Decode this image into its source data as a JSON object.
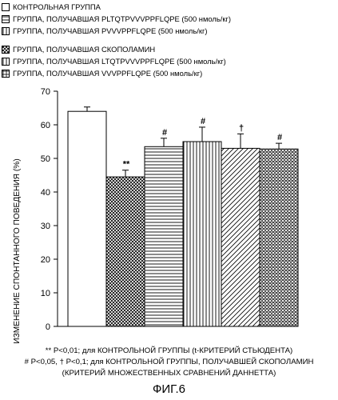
{
  "legend": [
    {
      "label": "КОНТРОЛЬНАЯ ГРУППА",
      "pattern": "blank"
    },
    {
      "label": "ГРУППА, ПОЛУЧАВШАЯ PLTQTPVVVPPFLQPE (500 нмоль/кг)",
      "pattern": "hlines"
    },
    {
      "label": "ГРУППА, ПОЛУЧАВШАЯ PVVVPPFLQPE (500 нмоль/кг)",
      "pattern": "vlines"
    },
    {
      "label": "ГРУППА, ПОЛУЧАВШАЯ СКОПОЛАМИН",
      "pattern": "crosshatch"
    },
    {
      "label": "ГРУППА, ПОЛУЧАВШАЯ LTQTPVVVPPFLQPE (500 нмоль/кг)",
      "pattern": "vlines"
    },
    {
      "label": "ГРУППА, ПОЛУЧАВШАЯ VVVPPFLQPE (500 нмоль/кг)",
      "pattern": "grid"
    }
  ],
  "chart_data": {
    "type": "bar",
    "ylabel": "ИЗМЕНЕНИЕ СПОНТАННОГО ПОВЕДЕНИЯ (%)",
    "ylim": [
      0,
      70
    ],
    "yticks": [
      "0",
      "10",
      "20",
      "30",
      "40",
      "50",
      "60",
      "70"
    ],
    "bars": [
      {
        "value": 64,
        "error": 1.3,
        "pattern": "blank",
        "mark": ""
      },
      {
        "value": 44.5,
        "error": 2.0,
        "pattern": "crosshatch",
        "mark": "**"
      },
      {
        "value": 53.5,
        "error": 2.5,
        "pattern": "hlines",
        "mark": "#"
      },
      {
        "value": 55,
        "error": 4.3,
        "pattern": "vlines",
        "mark": "#"
      },
      {
        "value": 53,
        "error": 4.3,
        "pattern": "diag",
        "mark": "†"
      },
      {
        "value": 52.8,
        "error": 1.7,
        "pattern": "diagcross",
        "mark": "#"
      }
    ]
  },
  "notes": [
    "** P<0,01; для КОНТРОЛЬНОЙ ГРУППЫ (t-КРИТЕРИЙ СТЬЮДЕНТА)",
    "# P<0,05, † P<0,1; для КОНТРОЛЬНОЙ ГРУППЫ, ПОЛУЧАВШЕЙ СКОПОЛАМИН",
    "(КРИТЕРИЙ МНОЖЕСТВЕННЫХ СРАВНЕНИЙ ДАННЕТТА)"
  ],
  "figure_label": "ФИГ.6"
}
